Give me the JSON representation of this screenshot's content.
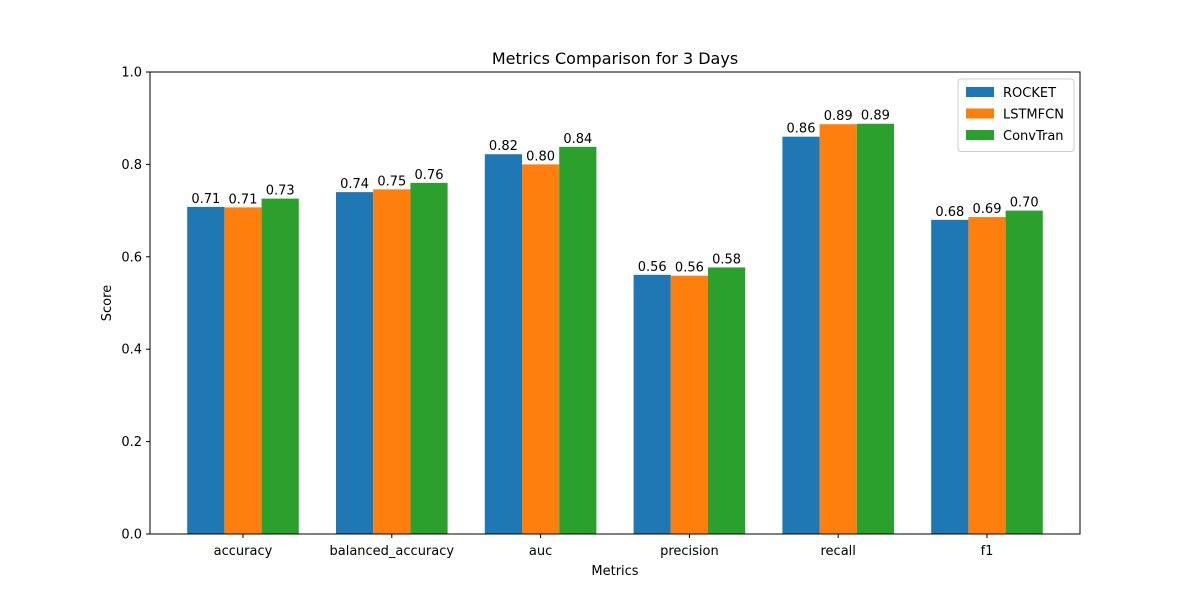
{
  "chart_data": {
    "type": "bar",
    "title": "Metrics Comparison for 3 Days",
    "xlabel": "Metrics",
    "ylabel": "Score",
    "ylim": [
      0,
      1.0
    ],
    "yticks": [
      "0.0",
      "0.2",
      "0.4",
      "0.6",
      "0.8",
      "1.0"
    ],
    "categories": [
      "accuracy",
      "balanced_accuracy",
      "auc",
      "precision",
      "recall",
      "f1"
    ],
    "series": [
      {
        "name": "ROCKET",
        "color": "#1f77b4",
        "values": [
          0.708,
          0.74,
          0.822,
          0.561,
          0.86,
          0.68
        ],
        "labels": [
          "0.71",
          "0.74",
          "0.82",
          "0.56",
          "0.86",
          "0.68"
        ]
      },
      {
        "name": "LSTMFCN",
        "color": "#ff7f0e",
        "values": [
          0.707,
          0.746,
          0.8,
          0.559,
          0.887,
          0.686
        ],
        "labels": [
          "0.71",
          "0.75",
          "0.80",
          "0.56",
          "0.89",
          "0.69"
        ]
      },
      {
        "name": "ConvTran",
        "color": "#2ca02c",
        "values": [
          0.726,
          0.76,
          0.838,
          0.577,
          0.888,
          0.7
        ],
        "labels": [
          "0.73",
          "0.76",
          "0.84",
          "0.58",
          "0.89",
          "0.70"
        ]
      }
    ],
    "legend_position": "top-right",
    "grid": false
  }
}
